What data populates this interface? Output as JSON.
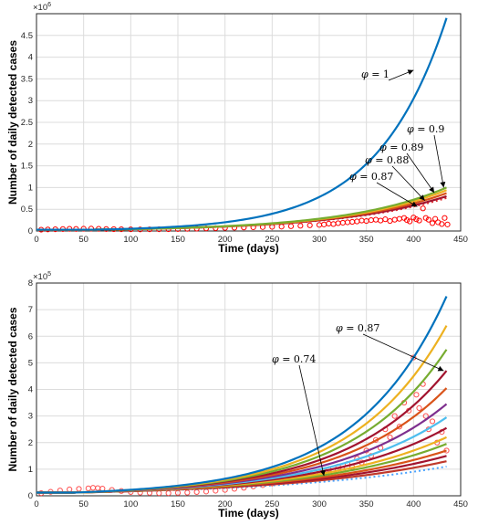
{
  "chart_data": [
    {
      "type": "line",
      "xlabel": "Time (days)",
      "ylabel": "Number of daily detected cases",
      "xlim": [
        0,
        450
      ],
      "ylim": [
        0,
        5000000
      ],
      "x_ticks": [
        "0",
        "50",
        "100",
        "150",
        "200",
        "250",
        "300",
        "350",
        "400",
        "450"
      ],
      "y_ticks": [
        "0",
        "0.5",
        "1",
        "1.5",
        "2",
        "2.5",
        "3",
        "3.5",
        "4",
        "4.5"
      ],
      "y_tick_values": [
        0,
        500000,
        1000000,
        1500000,
        2000000,
        2500000,
        3000000,
        3500000,
        4000000,
        4500000
      ],
      "y_exponent": "×10",
      "y_exponent_power": "6",
      "grid": true,
      "series": [
        {
          "color": "#0072bd",
          "end_value": 4900000
        },
        {
          "color": "#77ac30",
          "end_value": 1000000
        },
        {
          "color": "#edb120",
          "end_value": 940000
        },
        {
          "color": "#d95319",
          "end_value": 870000
        },
        {
          "color": "#a2142f",
          "end_value": 800000
        }
      ],
      "dotted_fit": {
        "color": "#e03030",
        "end_value": 760000
      },
      "observed_points": {
        "color": "#ff0000",
        "x": [
          5,
          12,
          20,
          28,
          35,
          42,
          50,
          58,
          66,
          74,
          82,
          90,
          100,
          110,
          120,
          130,
          140,
          150,
          160,
          170,
          180,
          190,
          200,
          210,
          220,
          230,
          240,
          250,
          260,
          270,
          280,
          290,
          300,
          305,
          310,
          315,
          320,
          325,
          330,
          335,
          340,
          345,
          350,
          355,
          360,
          365,
          370,
          375,
          380,
          385,
          390,
          393,
          396,
          400,
          403,
          406,
          410,
          413,
          416,
          420,
          423,
          426,
          430,
          433,
          436
        ],
        "y": [
          30000,
          35000,
          40000,
          45000,
          50000,
          48000,
          52000,
          55000,
          50000,
          45000,
          42000,
          40000,
          38000,
          35000,
          38000,
          40000,
          42000,
          45000,
          50000,
          55000,
          60000,
          65000,
          70000,
          75000,
          80000,
          85000,
          90000,
          95000,
          100000,
          110000,
          120000,
          130000,
          140000,
          150000,
          170000,
          160000,
          180000,
          190000,
          200000,
          210000,
          220000,
          240000,
          230000,
          250000,
          260000,
          240000,
          270000,
          230000,
          260000,
          280000,
          300000,
          250000,
          220000,
          310000,
          270000,
          240000,
          520000,
          300000,
          260000,
          180000,
          280000,
          200000,
          160000,
          300000,
          150000
        ]
      },
      "annotations": [
        {
          "var": "φ",
          "text": " = 1",
          "points_to_x": 400,
          "points_to_y": 3700000
        },
        {
          "var": "φ",
          "text": " = 0.9",
          "points_to_x": 432,
          "points_to_y": 1000000
        },
        {
          "var": "φ",
          "text": " = 0.89",
          "points_to_x": 422,
          "points_to_y": 880000
        },
        {
          "var": "φ",
          "text": " = 0.88",
          "points_to_x": 412,
          "points_to_y": 700000
        },
        {
          "var": "φ",
          "text": " = 0.87",
          "points_to_x": 404,
          "points_to_y": 560000
        }
      ]
    },
    {
      "type": "line",
      "xlabel": "Time (days)",
      "ylabel": "Number of daily detected cases",
      "xlim": [
        0,
        450
      ],
      "ylim": [
        0,
        800000
      ],
      "x_ticks": [
        "0",
        "50",
        "100",
        "150",
        "200",
        "250",
        "300",
        "350",
        "400",
        "450"
      ],
      "y_ticks": [
        "0",
        "1",
        "2",
        "3",
        "4",
        "5",
        "6",
        "7",
        "8"
      ],
      "y_tick_values": [
        0,
        100000,
        200000,
        300000,
        400000,
        500000,
        600000,
        700000,
        800000
      ],
      "y_exponent": "×10",
      "y_exponent_power": "5",
      "grid": true,
      "series": [
        {
          "color": "#0072bd",
          "end_value": 750000
        },
        {
          "color": "#edb120",
          "end_value": 640000
        },
        {
          "color": "#77ac30",
          "end_value": 550000
        },
        {
          "color": "#a2142f",
          "end_value": 470000
        },
        {
          "color": "#d95319",
          "end_value": 405000
        },
        {
          "color": "#7e2f8e",
          "end_value": 345000
        },
        {
          "color": "#4dbeee",
          "end_value": 295000
        },
        {
          "color": "#a2142f",
          "end_value": 255000
        },
        {
          "color": "#edb120",
          "end_value": 220000
        },
        {
          "color": "#77ac30",
          "end_value": 195000
        },
        {
          "color": "#d95319",
          "end_value": 170000
        },
        {
          "color": "#a2142f",
          "end_value": 150000
        },
        {
          "color": "#c0392b",
          "end_value": 130000
        }
      ],
      "dotted_fit": {
        "color": "#4aa3ff",
        "end_value": 110000
      },
      "observed_points": {
        "color": "#ff5050",
        "x": [
          5,
          15,
          25,
          35,
          45,
          55,
          60,
          65,
          70,
          80,
          90,
          100,
          110,
          120,
          130,
          140,
          150,
          160,
          170,
          180,
          190,
          200,
          210,
          220,
          230,
          240,
          250,
          255,
          260,
          265,
          270,
          275,
          280,
          285,
          290,
          295,
          300,
          305,
          310,
          315,
          320,
          325,
          330,
          335,
          340,
          345,
          350,
          355,
          360,
          365,
          370,
          375,
          380,
          385,
          390,
          395,
          400,
          403,
          406,
          410,
          413,
          416,
          420,
          425,
          430,
          435
        ],
        "y": [
          10000,
          15000,
          20000,
          24000,
          26000,
          28000,
          30000,
          29000,
          27000,
          22000,
          18000,
          14000,
          12000,
          11000,
          10000,
          10000,
          11000,
          12000,
          14000,
          16000,
          19000,
          22000,
          26000,
          30000,
          35000,
          40000,
          46000,
          52000,
          60000,
          56000,
          68000,
          62000,
          72000,
          66000,
          80000,
          74000,
          90000,
          82000,
          100000,
          92000,
          110000,
          98000,
          120000,
          108000,
          140000,
          125000,
          170000,
          150000,
          210000,
          180000,
          250000,
          220000,
          300000,
          260000,
          350000,
          320000,
          520000,
          380000,
          330000,
          420000,
          300000,
          250000,
          280000,
          200000,
          240000,
          170000
        ]
      },
      "annotations": [
        {
          "var": "φ",
          "text": " = 0.87",
          "points_to_x": 432,
          "points_to_y": 470000
        },
        {
          "var": "φ",
          "text": " = 0.74",
          "points_to_x": 305,
          "points_to_y": 75000
        }
      ]
    }
  ]
}
